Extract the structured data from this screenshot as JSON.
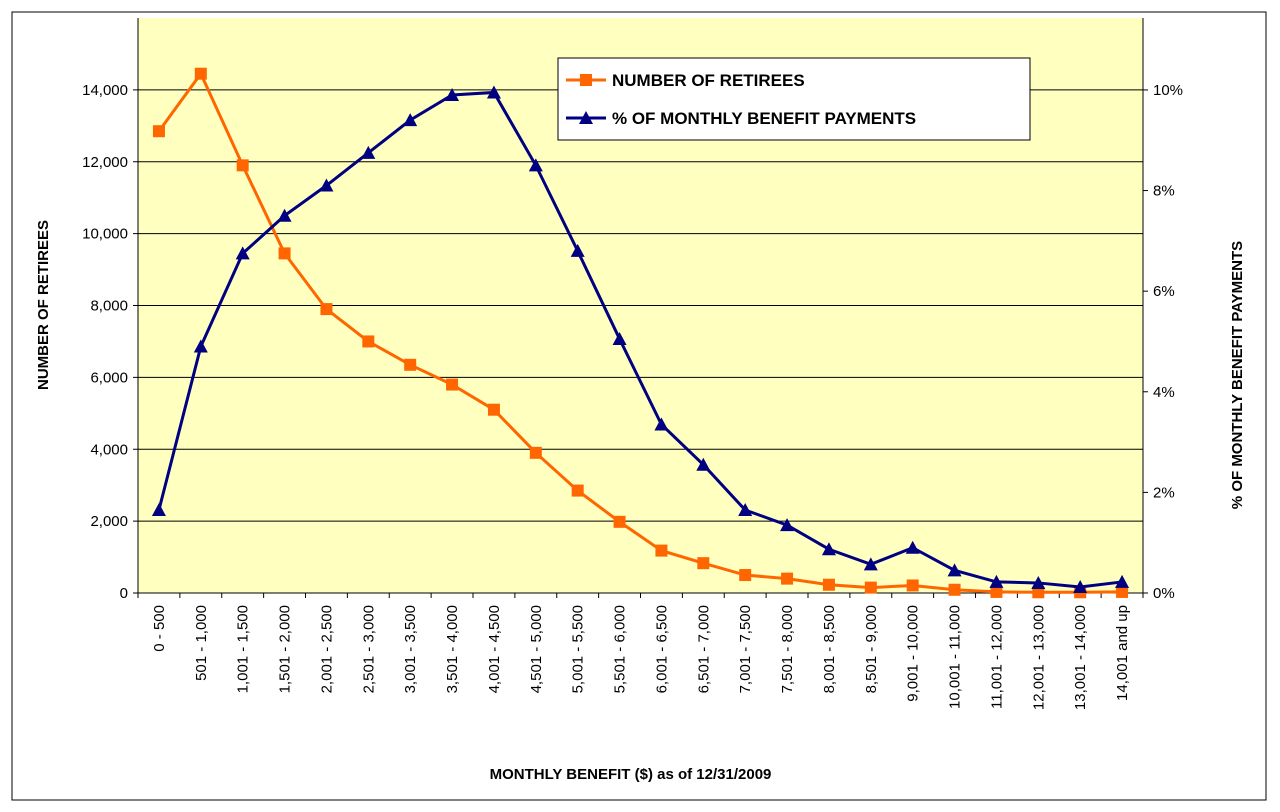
{
  "chart_data": {
    "type": "line",
    "x_label": "MONTHLY BENEFIT ($) as of 12/31/2009",
    "y_label": "NUMBER OF RETIREES",
    "y2_label": "% OF MONTHLY BENEFIT PAYMENTS",
    "categories": [
      "0 - 500",
      "501 - 1,000",
      "1,001 - 1,500",
      "1,501 - 2,000",
      "2,001 - 2,500",
      "2,501 - 3,000",
      "3,001 - 3,500",
      "3,501 - 4,000",
      "4,001 - 4,500",
      "4,501 - 5,000",
      "5,001 - 5,500",
      "5,501 - 6,000",
      "6,001 - 6,500",
      "6,501 - 7,000",
      "7,001 - 7,500",
      "7,501 - 8,000",
      "8,001 - 8,500",
      "8,501 - 9,000",
      "9,001 - 10,000",
      "10,001 - 11,000",
      "11,001 - 12,000",
      "12,001 - 13,000",
      "13,001 - 14,000",
      "14,001 and up"
    ],
    "series": [
      {
        "name": "NUMBER OF RETIREES",
        "color": "#ff6600",
        "marker": "square",
        "values": [
          12850,
          14450,
          11900,
          9450,
          7900,
          7000,
          6350,
          5800,
          5100,
          3900,
          2850,
          1980,
          1180,
          830,
          500,
          400,
          230,
          150,
          210,
          90,
          30,
          20,
          20,
          30
        ]
      },
      {
        "name": "% OF MONTHLY BENEFIT PAYMENTS",
        "color": "#000080",
        "marker": "triangle",
        "axis": "y2",
        "values": [
          1.65,
          4.9,
          6.75,
          7.5,
          8.1,
          8.75,
          9.4,
          9.9,
          9.95,
          8.5,
          6.8,
          5.05,
          3.35,
          2.55,
          1.65,
          1.35,
          0.87,
          0.57,
          0.9,
          0.45,
          0.22,
          0.2,
          0.12,
          0.22
        ]
      }
    ],
    "ylim": [
      0,
      16000
    ],
    "yticks": [
      0,
      {
        "value": 2000,
        "label": "2,000"
      },
      {
        "value": 4000,
        "label": "4,000"
      },
      {
        "value": 6000,
        "label": "6,000"
      },
      {
        "value": 8000,
        "label": "8,000"
      },
      {
        "value": 10000,
        "label": "10,000"
      },
      {
        "value": 12000,
        "label": "12,000"
      },
      {
        "value": 14000,
        "label": "14,000"
      }
    ],
    "y2lim": [
      0,
      11.43
    ],
    "y2ticks": [
      {
        "value": 0,
        "label": "0%"
      },
      {
        "value": 2,
        "label": "2%"
      },
      {
        "value": 4,
        "label": "4%"
      },
      {
        "value": 6,
        "label": "6%"
      },
      {
        "value": 8,
        "label": "8%"
      },
      {
        "value": 10,
        "label": "10%"
      }
    ],
    "grid": true,
    "legend": "top-center",
    "background": "#ffffc0"
  }
}
